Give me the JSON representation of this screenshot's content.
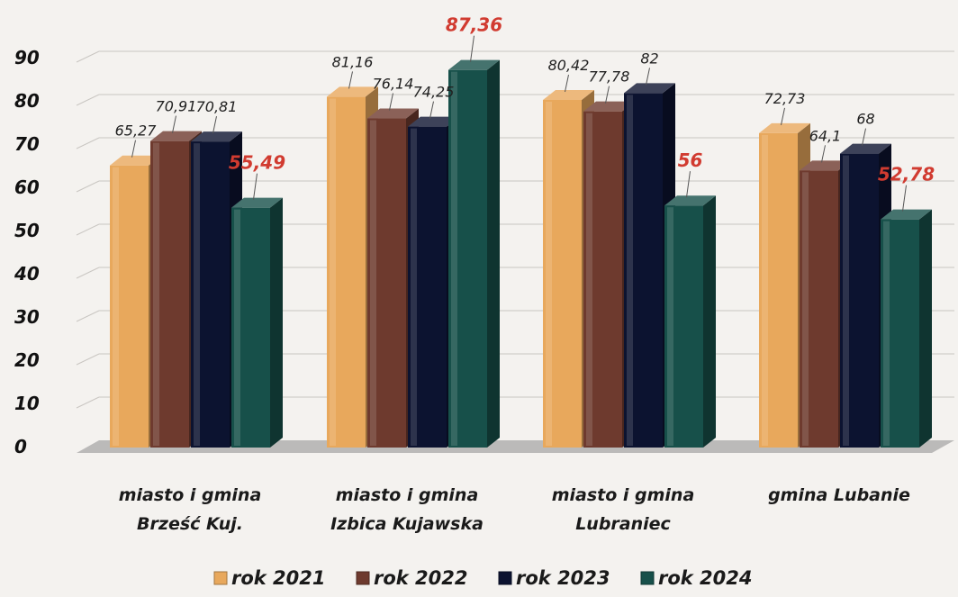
{
  "chart_data": {
    "type": "bar",
    "title": "",
    "xlabel": "",
    "ylabel": "",
    "ylim": [
      0,
      90
    ],
    "yticks": [
      "0",
      "10",
      "20",
      "30",
      "40",
      "50",
      "60",
      "70",
      "80",
      "90"
    ],
    "categories": [
      [
        "miasto  i gmina",
        "Brześć Kuj."
      ],
      [
        "miasto i gmina",
        "Izbica Kujawska"
      ],
      [
        "miasto i gmina",
        "Lubraniec"
      ],
      [
        "gmina Lubanie"
      ]
    ],
    "series": [
      {
        "name": "rok 2021",
        "color": "#e8a85c",
        "values": [
          65.27,
          81.16,
          80.42,
          72.73
        ],
        "labels": [
          "65,27",
          "81,16",
          "80,42",
          "72,73"
        ]
      },
      {
        "name": "rok 2022",
        "color": "#6e3a2e",
        "values": [
          70.91,
          76.14,
          77.78,
          64.1
        ],
        "labels": [
          "70,91",
          "76,14",
          "77,78",
          "64,1"
        ]
      },
      {
        "name": "rok 2023",
        "color": "#0c1330",
        "values": [
          70.81,
          74.25,
          82,
          68
        ],
        "labels": [
          "70,81",
          "74,25",
          "82",
          "68"
        ]
      },
      {
        "name": "rok 2024",
        "color": "#17504a",
        "values": [
          55.49,
          87.36,
          56,
          52.78
        ],
        "labels": [
          "55,49",
          "87,36",
          "56",
          "52,78"
        ]
      }
    ],
    "highlighted_series": "rok 2024",
    "highlight_color": "#d13b30",
    "grid": true,
    "legend": "bottom"
  }
}
